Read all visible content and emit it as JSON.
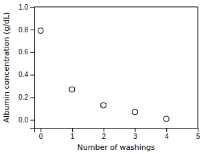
{
  "chart_data": {
    "type": "scatter",
    "xlabel": "Number of washings",
    "ylabel": "Albumin concentration (g/dL)",
    "x": [
      0,
      1,
      2,
      3,
      4
    ],
    "values": [
      0.79,
      0.27,
      0.13,
      0.07,
      0.01
    ],
    "x_err": [
      0.05,
      0.08,
      0.08,
      0.08,
      0.0
    ],
    "y_err": [
      0.02,
      0.01,
      0.01,
      0.01,
      0.005
    ],
    "xlim": [
      -0.2,
      5
    ],
    "ylim": [
      -0.07,
      1.0
    ],
    "xticks": [
      0,
      1,
      2,
      3,
      4,
      5
    ],
    "yticks": [
      {
        "value": 0.0,
        "label": "0.0"
      },
      0.2,
      0.4,
      0.6,
      0.8,
      {
        "value": 1.0,
        "label": "1.0"
      }
    ],
    "color": "black",
    "marker": "circle",
    "grid": false
  }
}
